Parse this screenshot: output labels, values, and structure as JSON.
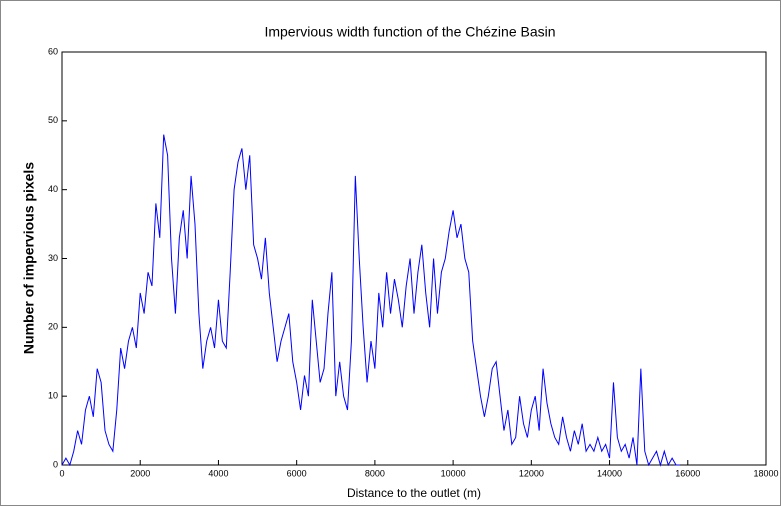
{
  "chart_data": {
    "type": "line",
    "title": "Impervious width function of the Chézine Basin",
    "x_label": "Distance to the outlet (m)",
    "y_label": "Number of impervious pixels",
    "color": "#0000ff",
    "x": [
      0,
      100,
      200,
      300,
      400,
      500,
      600,
      700,
      800,
      900,
      1000,
      1100,
      1200,
      1300,
      1400,
      1500,
      1600,
      1700,
      1800,
      1900,
      2000,
      2100,
      2200,
      2300,
      2400,
      2500,
      2600,
      2700,
      2800,
      2900,
      3000,
      3100,
      3200,
      3300,
      3400,
      3500,
      3600,
      3700,
      3800,
      3900,
      4000,
      4100,
      4200,
      4300,
      4400,
      4500,
      4600,
      4700,
      4800,
      4900,
      5000,
      5100,
      5200,
      5300,
      5400,
      5500,
      5600,
      5700,
      5800,
      5900,
      6000,
      6100,
      6200,
      6300,
      6400,
      6500,
      6600,
      6700,
      6800,
      6900,
      7000,
      7100,
      7200,
      7300,
      7400,
      7500,
      7600,
      7700,
      7800,
      7900,
      8000,
      8100,
      8200,
      8300,
      8400,
      8500,
      8600,
      8700,
      8800,
      8900,
      9000,
      9100,
      9200,
      9300,
      9400,
      9500,
      9600,
      9700,
      9800,
      9900,
      10000,
      10100,
      10200,
      10300,
      10400,
      10500,
      10600,
      10700,
      10800,
      10900,
      11000,
      11100,
      11200,
      11300,
      11400,
      11500,
      11600,
      11700,
      11800,
      11900,
      12000,
      12100,
      12200,
      12300,
      12400,
      12500,
      12600,
      12700,
      12800,
      12900,
      13000,
      13100,
      13200,
      13300,
      13400,
      13500,
      13600,
      13700,
      13800,
      13900,
      14000,
      14100,
      14200,
      14300,
      14400,
      14500,
      14600,
      14700,
      14800,
      14900,
      15000,
      15100,
      15200,
      15300,
      15400,
      15500,
      15600,
      15700,
      15800
    ],
    "values": [
      0,
      1,
      0,
      2,
      5,
      3,
      8,
      10,
      7,
      14,
      12,
      5,
      3,
      2,
      8,
      17,
      14,
      18,
      20,
      17,
      25,
      22,
      28,
      26,
      38,
      33,
      48,
      45,
      30,
      22,
      33,
      37,
      30,
      42,
      35,
      22,
      14,
      18,
      20,
      17,
      24,
      18,
      17,
      28,
      40,
      44,
      46,
      40,
      45,
      32,
      30,
      27,
      33,
      25,
      20,
      15,
      18,
      20,
      22,
      15,
      12,
      8,
      13,
      10,
      24,
      18,
      12,
      14,
      22,
      28,
      10,
      15,
      10,
      8,
      18,
      42,
      30,
      20,
      12,
      18,
      14,
      25,
      20,
      28,
      22,
      27,
      24,
      20,
      26,
      30,
      22,
      28,
      32,
      25,
      20,
      30,
      22,
      28,
      30,
      34,
      37,
      33,
      35,
      30,
      28,
      18,
      14,
      10,
      7,
      10,
      14,
      15,
      10,
      5,
      8,
      3,
      4,
      10,
      6,
      4,
      8,
      10,
      5,
      14,
      9,
      6,
      4,
      3,
      7,
      4,
      2,
      5,
      3,
      6,
      2,
      3,
      2,
      4,
      2,
      3,
      1,
      12,
      4,
      2,
      3,
      1,
      4,
      0,
      14,
      2,
      0,
      1,
      2,
      0,
      2,
      0,
      1,
      0,
      0
    ],
    "xlim": [
      0,
      18000
    ],
    "ylim": [
      0,
      60
    ],
    "xticks": [
      0,
      2000,
      4000,
      6000,
      8000,
      10000,
      12000,
      14000,
      16000,
      18000
    ],
    "yticks": [
      0,
      10,
      20,
      30,
      40,
      50,
      60
    ]
  }
}
